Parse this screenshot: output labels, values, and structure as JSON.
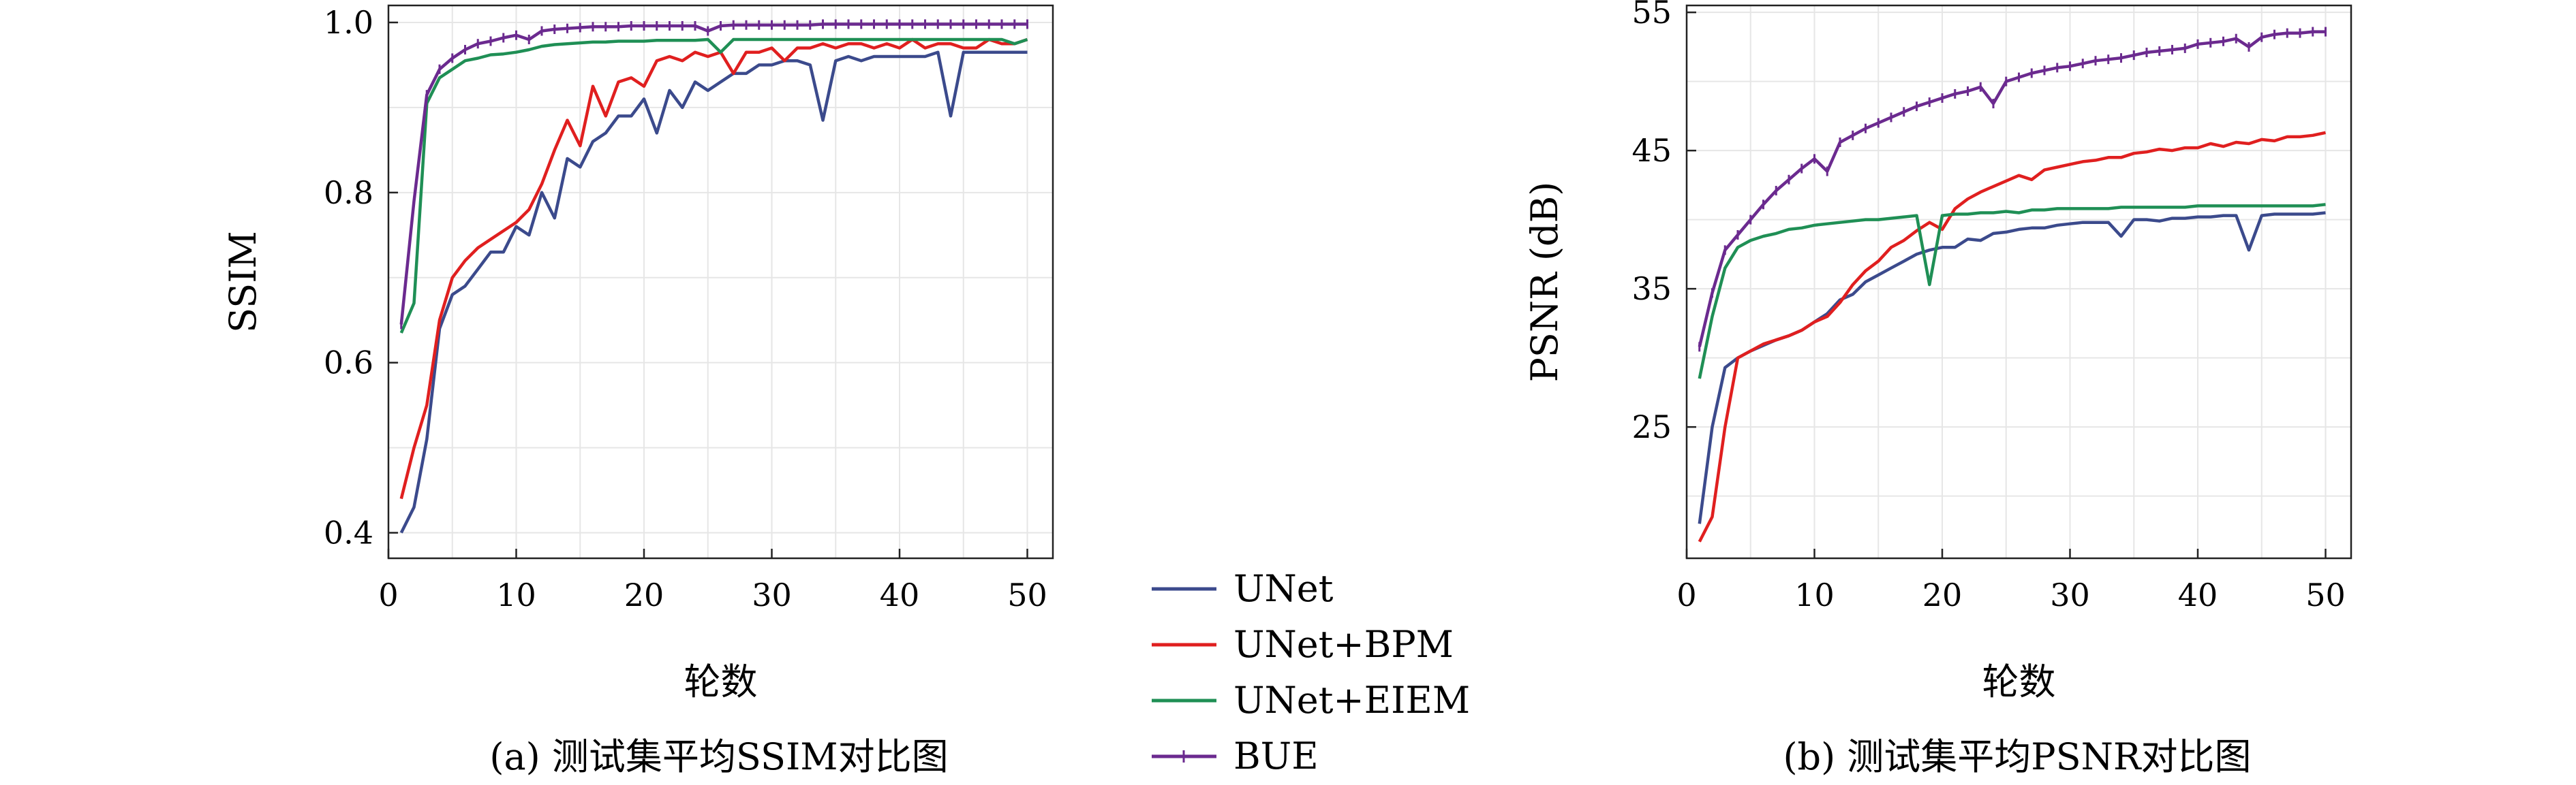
{
  "chart_data": [
    {
      "type": "line",
      "xlabel": "轮数",
      "ylabel": "SSIM",
      "caption": "(a) 测试集平均SSIM对比图",
      "xlim": [
        0,
        52
      ],
      "ylim": [
        0.37,
        1.02
      ],
      "xticks": [
        0,
        10,
        20,
        30,
        40,
        50
      ],
      "yticks": [
        0.4,
        0.6,
        0.8,
        1.0
      ],
      "ytick_labels": [
        "0.4",
        "0.6",
        "0.8",
        "1.0"
      ],
      "grid": true,
      "x": [
        1,
        2,
        3,
        4,
        5,
        6,
        7,
        8,
        9,
        10,
        11,
        12,
        13,
        14,
        15,
        16,
        17,
        18,
        19,
        20,
        21,
        22,
        23,
        24,
        25,
        26,
        27,
        28,
        29,
        30,
        31,
        32,
        33,
        34,
        35,
        36,
        37,
        38,
        39,
        40,
        41,
        42,
        43,
        44,
        45,
        46,
        47,
        48,
        49,
        50
      ],
      "series": [
        {
          "name": "UNet",
          "color": "#3b4a8c",
          "values": [
            0.4,
            0.43,
            0.51,
            0.64,
            0.68,
            0.69,
            0.71,
            0.73,
            0.73,
            0.76,
            0.75,
            0.8,
            0.77,
            0.84,
            0.83,
            0.86,
            0.87,
            0.89,
            0.89,
            0.91,
            0.87,
            0.92,
            0.9,
            0.93,
            0.92,
            0.93,
            0.94,
            0.94,
            0.95,
            0.95,
            0.955,
            0.955,
            0.95,
            0.885,
            0.955,
            0.96,
            0.955,
            0.96,
            0.96,
            0.96,
            0.96,
            0.96,
            0.965,
            0.89,
            0.965,
            0.965,
            0.965,
            0.965,
            0.965,
            0.965
          ]
        },
        {
          "name": "UNet+BPM",
          "color": "#e01f1f",
          "values": [
            0.44,
            0.5,
            0.55,
            0.65,
            0.7,
            0.72,
            0.735,
            0.745,
            0.755,
            0.765,
            0.78,
            0.81,
            0.85,
            0.885,
            0.855,
            0.925,
            0.89,
            0.93,
            0.935,
            0.925,
            0.955,
            0.96,
            0.955,
            0.965,
            0.96,
            0.965,
            0.94,
            0.965,
            0.965,
            0.97,
            0.955,
            0.97,
            0.97,
            0.975,
            0.97,
            0.975,
            0.975,
            0.97,
            0.975,
            0.97,
            0.98,
            0.97,
            0.975,
            0.975,
            0.97,
            0.97,
            0.98,
            0.975,
            0.975,
            0.98
          ]
        },
        {
          "name": "UNet+EIEM",
          "color": "#1f8f55",
          "values": [
            0.635,
            0.67,
            0.905,
            0.935,
            0.945,
            0.955,
            0.958,
            0.962,
            0.963,
            0.965,
            0.968,
            0.972,
            0.974,
            0.975,
            0.976,
            0.977,
            0.977,
            0.978,
            0.978,
            0.978,
            0.979,
            0.979,
            0.979,
            0.979,
            0.98,
            0.965,
            0.98,
            0.98,
            0.98,
            0.98,
            0.98,
            0.98,
            0.98,
            0.98,
            0.98,
            0.98,
            0.98,
            0.98,
            0.98,
            0.98,
            0.98,
            0.98,
            0.98,
            0.98,
            0.98,
            0.98,
            0.98,
            0.98,
            0.975,
            0.98
          ]
        },
        {
          "name": "BUE",
          "color": "#6b2a8f",
          "values": [
            0.645,
            0.79,
            0.915,
            0.945,
            0.958,
            0.968,
            0.975,
            0.978,
            0.982,
            0.985,
            0.98,
            0.99,
            0.992,
            0.993,
            0.994,
            0.995,
            0.995,
            0.995,
            0.996,
            0.996,
            0.996,
            0.996,
            0.996,
            0.996,
            0.99,
            0.996,
            0.997,
            0.997,
            0.997,
            0.997,
            0.997,
            0.997,
            0.997,
            0.998,
            0.998,
            0.998,
            0.998,
            0.998,
            0.998,
            0.998,
            0.998,
            0.998,
            0.998,
            0.998,
            0.998,
            0.998,
            0.998,
            0.998,
            0.998,
            0.998
          ]
        }
      ]
    },
    {
      "type": "line",
      "xlabel": "轮数",
      "ylabel": "PSNR (dB)",
      "caption": "(b) 测试集平均PSNR对比图",
      "xlim": [
        0,
        52
      ],
      "ylim": [
        15.5,
        55.5
      ],
      "xticks": [
        0,
        10,
        20,
        30,
        40,
        50
      ],
      "yticks": [
        25,
        35,
        45,
        55
      ],
      "ytick_labels": [
        "25",
        "35",
        "45",
        "55"
      ],
      "grid": true,
      "x": [
        1,
        2,
        3,
        4,
        5,
        6,
        7,
        8,
        9,
        10,
        11,
        12,
        13,
        14,
        15,
        16,
        17,
        18,
        19,
        20,
        21,
        22,
        23,
        24,
        25,
        26,
        27,
        28,
        29,
        30,
        31,
        32,
        33,
        34,
        35,
        36,
        37,
        38,
        39,
        40,
        41,
        42,
        43,
        44,
        45,
        46,
        47,
        48,
        49,
        50
      ],
      "series": [
        {
          "name": "UNet",
          "color": "#3b4a8c",
          "values": [
            18.0,
            25.0,
            29.3,
            30.0,
            30.5,
            30.9,
            31.3,
            31.6,
            32.0,
            32.6,
            33.2,
            34.2,
            34.6,
            35.5,
            36.0,
            36.5,
            37.0,
            37.5,
            37.8,
            38.0,
            38.0,
            38.6,
            38.5,
            39.0,
            39.1,
            39.3,
            39.4,
            39.4,
            39.6,
            39.7,
            39.8,
            39.8,
            39.8,
            38.8,
            40.0,
            40.0,
            39.9,
            40.1,
            40.1,
            40.2,
            40.2,
            40.3,
            40.3,
            37.8,
            40.3,
            40.4,
            40.4,
            40.4,
            40.4,
            40.5
          ]
        },
        {
          "name": "UNet+BPM",
          "color": "#e01f1f",
          "values": [
            16.7,
            18.5,
            25.0,
            30.0,
            30.5,
            31.0,
            31.3,
            31.6,
            32.0,
            32.6,
            33.0,
            34.0,
            35.3,
            36.3,
            37.0,
            38.0,
            38.5,
            39.2,
            39.8,
            39.3,
            40.8,
            41.5,
            42.0,
            42.4,
            42.8,
            43.2,
            42.9,
            43.6,
            43.8,
            44.0,
            44.2,
            44.3,
            44.5,
            44.5,
            44.8,
            44.9,
            45.1,
            45.0,
            45.2,
            45.2,
            45.5,
            45.3,
            45.6,
            45.5,
            45.8,
            45.7,
            46.0,
            46.0,
            46.1,
            46.3
          ]
        },
        {
          "name": "UNet+EIEM",
          "color": "#1f8f55",
          "values": [
            28.5,
            33.0,
            36.5,
            38.0,
            38.5,
            38.8,
            39.0,
            39.3,
            39.4,
            39.6,
            39.7,
            39.8,
            39.9,
            40.0,
            40.0,
            40.1,
            40.2,
            40.3,
            35.3,
            40.3,
            40.4,
            40.4,
            40.5,
            40.5,
            40.6,
            40.5,
            40.7,
            40.7,
            40.8,
            40.8,
            40.8,
            40.8,
            40.8,
            40.9,
            40.9,
            40.9,
            40.9,
            40.9,
            40.9,
            41.0,
            41.0,
            41.0,
            41.0,
            41.0,
            41.0,
            41.0,
            41.0,
            41.0,
            41.0,
            41.1
          ]
        },
        {
          "name": "BUE",
          "color": "#6b2a8f",
          "values": [
            30.8,
            34.7,
            37.8,
            38.9,
            40.0,
            41.1,
            42.1,
            42.9,
            43.7,
            44.4,
            43.5,
            45.6,
            46.1,
            46.6,
            47.0,
            47.4,
            47.8,
            48.2,
            48.5,
            48.8,
            49.1,
            49.3,
            49.6,
            48.4,
            50.0,
            50.3,
            50.6,
            50.8,
            51.0,
            51.1,
            51.3,
            51.5,
            51.6,
            51.7,
            51.9,
            52.1,
            52.2,
            52.3,
            52.4,
            52.7,
            52.8,
            52.9,
            53.1,
            52.5,
            53.2,
            53.4,
            53.5,
            53.5,
            53.6,
            53.6
          ]
        }
      ]
    }
  ],
  "legend": {
    "placement": "bottom-center",
    "items": [
      {
        "label": "UNet",
        "color": "#3b4a8c"
      },
      {
        "label": "UNet+BPM",
        "color": "#e01f1f"
      },
      {
        "label": "UNet+EIEM",
        "color": "#1f8f55"
      },
      {
        "label": "BUE",
        "color": "#6b2a8f"
      }
    ]
  }
}
